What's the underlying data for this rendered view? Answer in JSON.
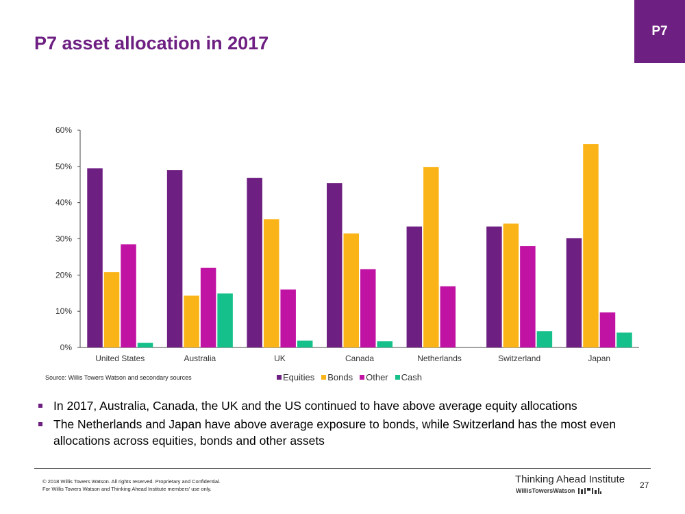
{
  "header": {
    "title": "P7 asset allocation in 2017",
    "badge": "P7"
  },
  "chart_data": {
    "type": "bar",
    "categories": [
      "United States",
      "Australia",
      "UK",
      "Canada",
      "Netherlands",
      "Switzerland",
      "Japan"
    ],
    "series": [
      {
        "name": "Equities",
        "color": "#6e1f82",
        "values": [
          49.5,
          49.0,
          46.8,
          45.4,
          33.4,
          33.4,
          30.2
        ]
      },
      {
        "name": "Bonds",
        "color": "#fbb418",
        "values": [
          20.8,
          14.3,
          35.4,
          31.5,
          49.8,
          34.2,
          56.2
        ]
      },
      {
        "name": "Other",
        "color": "#c113a3",
        "values": [
          28.5,
          22.0,
          16.0,
          21.6,
          16.9,
          28.0,
          9.7
        ]
      },
      {
        "name": "Cash",
        "color": "#16c08a",
        "values": [
          1.3,
          14.9,
          1.9,
          1.7,
          0.0,
          4.5,
          4.1
        ]
      }
    ],
    "y_ticks": [
      "0%",
      "10%",
      "20%",
      "30%",
      "40%",
      "50%",
      "60%"
    ],
    "ylim": [
      0,
      60
    ],
    "grid": false,
    "legend": "bottom"
  },
  "source_note": "Source: Willis Towers Watson and secondary sources",
  "bullets": [
    "In 2017, Australia, Canada, the UK and the US continued to have above average equity allocations",
    "The Netherlands and Japan have above average exposure to bonds, while Switzerland has the most even allocations across equities, bonds and other assets"
  ],
  "footer": {
    "copyright": "© 2018 Willis Towers Watson. All rights reserved. Proprietary and Confidential.",
    "members_note": "For Willis Towers Watson and Thinking Ahead Institute members' use only.",
    "institute": "Thinking Ahead Institute",
    "company": "WillisTowersWatson",
    "page_number": "27"
  }
}
